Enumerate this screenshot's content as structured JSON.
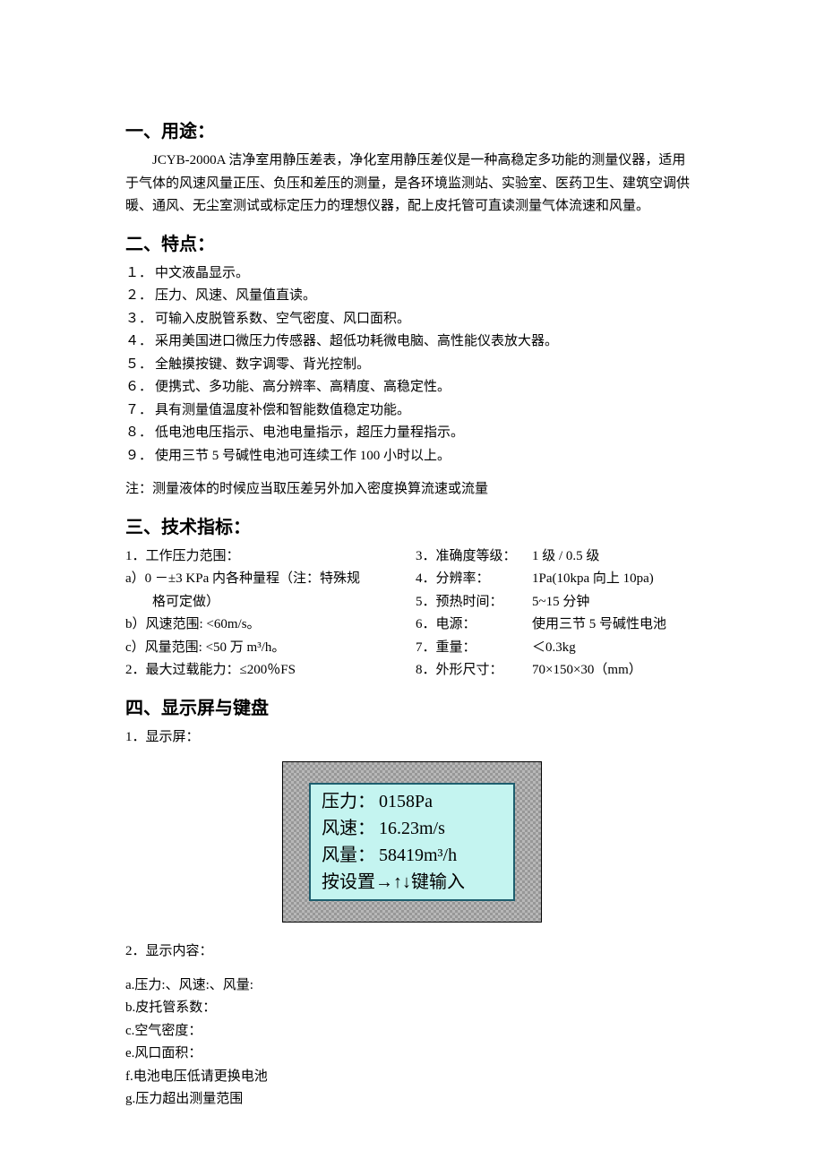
{
  "colors": {
    "page_bg": "#ffffff",
    "text": "#000000",
    "lcd_outer_fill": "#b8b8b8",
    "lcd_outer_hatch": "rgba(0,0,0,0.18)",
    "lcd_outer_border": "#000000",
    "lcd_inner_bg": "#c4f4f0",
    "lcd_inner_border": "#1d5e6e"
  },
  "section1": {
    "heading": "一、用途：",
    "body": "JCYB-2000A 洁净室用静压差表，净化室用静压差仪是一种高稳定多功能的测量仪器，适用于气体的风速风量正压、负压和差压的测量，是各环境监测站、实验室、医药卫生、建筑空调供暖、通风、无尘室测试或标定压力的理想仪器，配上皮托管可直读测量气体流速和风量。"
  },
  "section2": {
    "heading": "二、特点：",
    "items": [
      {
        "marker": "１．",
        "text": "中文液晶显示。"
      },
      {
        "marker": "２．",
        "text": "压力、风速、风量值直读。"
      },
      {
        "marker": "３．",
        "text": "可输入皮脱管系数、空气密度、风口面积。"
      },
      {
        "marker": "４．",
        "text": "采用美国进口微压力传感器、超低功耗微电脑、高性能仪表放大器。"
      },
      {
        "marker": "５．",
        "text": "全触摸按键、数字调零、背光控制。"
      },
      {
        "marker": "６．",
        "text": "便携式、多功能、高分辨率、高精度、高稳定性。"
      },
      {
        "marker": "７．",
        "text": "具有测量值温度补偿和智能数值稳定功能。"
      },
      {
        "marker": "８．",
        "text": "低电池电压指示、电池电量指示，超压力量程指示。"
      },
      {
        "marker": "９．",
        "text": "使用三节 5 号碱性电池可连续工作 100 小时以上。"
      }
    ],
    "note": "注：测量液体的时候应当取压差另外加入密度换算流速或流量"
  },
  "section3": {
    "heading": "三、技术指标：",
    "left": [
      "1．工作压力范围：",
      "a）0 －±3 KPa  内各种量程（注：特殊规",
      "　　格可定做）",
      "b）风速范围: <60m/s。",
      "c）风量范围: <50 万 m³/h。",
      "2．最大过载能力：≤200％FS"
    ],
    "right": [
      {
        "label": "3．准确度等级：",
        "value": "1 级  / 0.5 级"
      },
      {
        "label": "4．分辨率：",
        "value": "1Pa(10kpa 向上 10pa)"
      },
      {
        "label": "5．预热时间：",
        "value": "5~15 分钟"
      },
      {
        "label": "6．电源：",
        "value": "使用三节 5 号碱性电池"
      },
      {
        "label": "7．重量：",
        "value": "＜0.3kg"
      },
      {
        "label": "8．外形尺寸：",
        "value": "70×150×30（mm）"
      }
    ]
  },
  "section4": {
    "heading": "四、显示屏与键盘",
    "item1_label": "1．显示屏：",
    "lcd": {
      "width_outer": 290,
      "height_outer": 180,
      "width_inner": 230,
      "height_inner": 132,
      "lines": [
        {
          "label": "压力：",
          "value": "0158Pa"
        },
        {
          "label": "风速：",
          "value": "16.23m/s"
        },
        {
          "label": "风量：",
          "value": "58419m³/h"
        }
      ],
      "hint": "按设置→↑↓键输入"
    },
    "item2_label": "2．显示内容：",
    "contents": [
      "a.压力:、风速:、风量:",
      "b.皮托管系数：",
      "c.空气密度：",
      "e.风口面积：",
      "f.电池电压低请更换电池",
      "g.压力超出测量范围"
    ]
  }
}
